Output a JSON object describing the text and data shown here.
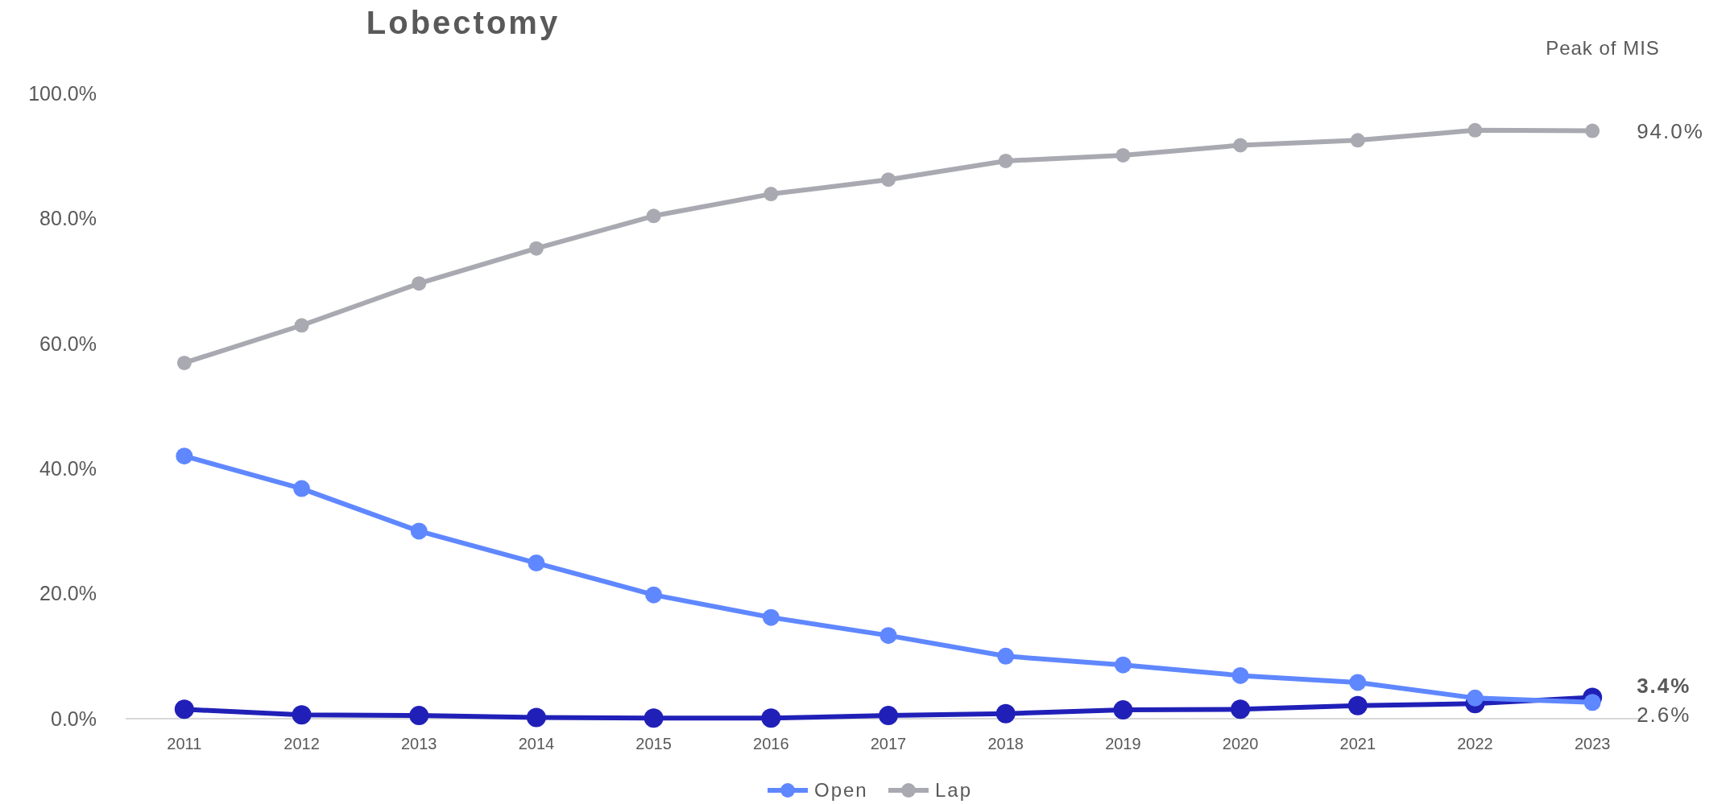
{
  "chart_data": {
    "type": "line",
    "title": "Lobectomy",
    "categories": [
      "2011",
      "2012",
      "2013",
      "2014",
      "2015",
      "2016",
      "2017",
      "2018",
      "2019",
      "2020",
      "2021",
      "2022",
      "2023"
    ],
    "series": [
      {
        "color": "#2020b8",
        "values": [
          1.5,
          0.6,
          0.5,
          0.2,
          0.1,
          0.1,
          0.5,
          0.8,
          1.4,
          1.5,
          2.1,
          2.4,
          3.4
        ],
        "value_labels": [
          null,
          null,
          null,
          null,
          null,
          null,
          null,
          null,
          null,
          null,
          null,
          null,
          "3.4%"
        ]
      },
      {
        "name": "Open",
        "color": "#5f87ff",
        "values": [
          42.0,
          36.8,
          30.0,
          24.9,
          19.8,
          16.2,
          13.3,
          10.0,
          8.6,
          6.9,
          5.8,
          3.3,
          2.6
        ],
        "value_labels": [
          null,
          null,
          null,
          null,
          null,
          null,
          null,
          null,
          null,
          null,
          null,
          null,
          "2.6%"
        ]
      },
      {
        "name": "Lap",
        "color": "#a9a9b1",
        "values": [
          56.9,
          62.9,
          69.6,
          75.2,
          80.4,
          83.9,
          86.2,
          89.2,
          90.1,
          91.7,
          92.5,
          94.1,
          94.0
        ],
        "value_labels": [
          null,
          null,
          null,
          null,
          null,
          null,
          null,
          null,
          null,
          null,
          null,
          null,
          "94.0%"
        ]
      }
    ],
    "ylim": [
      0,
      100
    ],
    "yticks": [
      {
        "value": 0,
        "label": "0.0%"
      },
      {
        "value": 20,
        "label": "20.0%"
      },
      {
        "value": 40,
        "label": "40.0%"
      },
      {
        "value": 60,
        "label": "60.0%"
      },
      {
        "value": 80,
        "label": "80.0%"
      },
      {
        "value": 100,
        "label": "100.0%"
      }
    ],
    "annotations": [
      "Peak of MIS"
    ],
    "grid": false,
    "legend": "bottom",
    "marker": "circle",
    "line_style": "solid"
  }
}
